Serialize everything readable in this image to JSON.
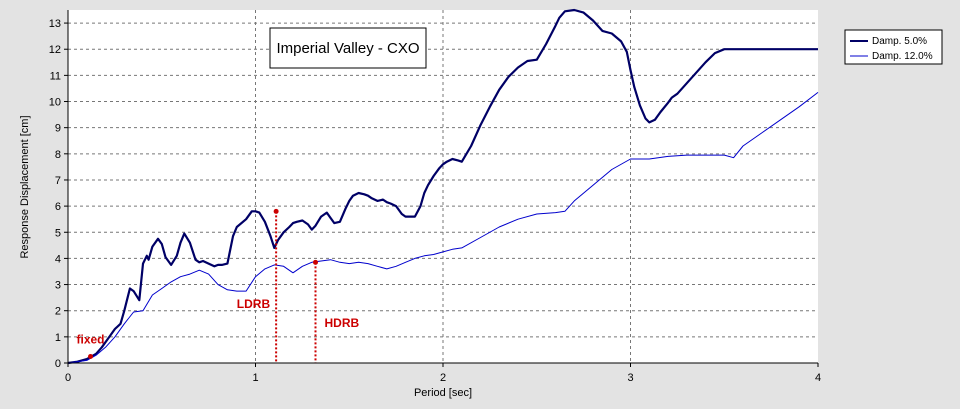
{
  "chart_data": {
    "type": "line",
    "title": "Imperial Valley - CXO",
    "xlabel": "Period [sec]",
    "ylabel": "Response Displacement [cm]",
    "xlim": [
      0,
      4
    ],
    "ylim": [
      0,
      13.5
    ],
    "xticks": [
      0,
      1,
      2,
      3,
      4
    ],
    "yticks": [
      0,
      1,
      2,
      3,
      4,
      5,
      6,
      7,
      8,
      9,
      10,
      11,
      12,
      13
    ],
    "grid": true,
    "legend_position": "top-right, outside plot",
    "series": [
      {
        "name": "Damp. 5.0%",
        "color": "#000066",
        "x": [
          0.0,
          0.05,
          0.1,
          0.15,
          0.18,
          0.22,
          0.25,
          0.28,
          0.3,
          0.33,
          0.35,
          0.38,
          0.4,
          0.42,
          0.43,
          0.45,
          0.48,
          0.5,
          0.52,
          0.55,
          0.58,
          0.6,
          0.62,
          0.65,
          0.68,
          0.7,
          0.72,
          0.75,
          0.78,
          0.8,
          0.82,
          0.85,
          0.88,
          0.9,
          0.95,
          0.98,
          1.0,
          1.02,
          1.05,
          1.08,
          1.1,
          1.12,
          1.15,
          1.18,
          1.2,
          1.22,
          1.25,
          1.28,
          1.3,
          1.32,
          1.35,
          1.38,
          1.4,
          1.42,
          1.45,
          1.48,
          1.5,
          1.52,
          1.55,
          1.58,
          1.6,
          1.62,
          1.65,
          1.68,
          1.7,
          1.72,
          1.75,
          1.78,
          1.8,
          1.82,
          1.85,
          1.88,
          1.9,
          1.92,
          1.95,
          1.98,
          2.0,
          2.02,
          2.05,
          2.08,
          2.1,
          2.15,
          2.2,
          2.25,
          2.3,
          2.35,
          2.4,
          2.45,
          2.5,
          2.55,
          2.6,
          2.62,
          2.65,
          2.7,
          2.75,
          2.8,
          2.85,
          2.9,
          2.95,
          2.98,
          3.0,
          3.02,
          3.05,
          3.08,
          3.1,
          3.13,
          3.16,
          3.2,
          3.22,
          3.25,
          3.3,
          3.35,
          3.4,
          3.45,
          3.5,
          3.55,
          3.58,
          3.6,
          3.62,
          3.65,
          3.7,
          3.75,
          3.8,
          3.85,
          3.9,
          3.95,
          4.0
        ],
        "y": [
          0.0,
          0.05,
          0.15,
          0.35,
          0.6,
          1.0,
          1.3,
          1.5,
          2.0,
          2.85,
          2.75,
          2.4,
          3.8,
          4.1,
          3.95,
          4.45,
          4.75,
          4.55,
          4.05,
          3.75,
          4.1,
          4.6,
          4.95,
          4.6,
          3.95,
          3.85,
          3.9,
          3.8,
          3.7,
          3.75,
          3.75,
          3.8,
          4.85,
          5.2,
          5.5,
          5.8,
          5.8,
          5.75,
          5.4,
          4.85,
          4.4,
          4.7,
          5.0,
          5.2,
          5.35,
          5.4,
          5.45,
          5.3,
          5.1,
          5.25,
          5.6,
          5.75,
          5.55,
          5.35,
          5.4,
          5.9,
          6.2,
          6.4,
          6.5,
          6.45,
          6.4,
          6.3,
          6.2,
          6.25,
          6.15,
          6.1,
          6.0,
          5.7,
          5.6,
          5.6,
          5.6,
          6.0,
          6.5,
          6.8,
          7.15,
          7.45,
          7.6,
          7.7,
          7.8,
          7.75,
          7.7,
          8.3,
          9.1,
          9.8,
          10.45,
          10.95,
          11.3,
          11.55,
          11.6,
          12.2,
          12.9,
          13.2,
          13.45,
          13.5,
          13.4,
          13.1,
          12.7,
          12.6,
          12.3,
          11.9,
          11.2,
          10.55,
          9.85,
          9.35,
          9.2,
          9.3,
          9.6,
          9.95,
          10.15,
          10.3,
          10.7,
          11.1,
          11.5,
          11.85,
          12.0,
          12.0,
          12.0,
          12.0,
          12.0,
          12.0,
          12.0,
          12.0,
          12.0,
          12.0,
          12.0,
          12.0,
          12.0
        ]
      },
      {
        "name": "Damp. 12.0%",
        "color": "#0000cc",
        "x": [
          0.0,
          0.1,
          0.15,
          0.2,
          0.25,
          0.3,
          0.35,
          0.4,
          0.45,
          0.5,
          0.55,
          0.6,
          0.65,
          0.7,
          0.75,
          0.8,
          0.85,
          0.9,
          0.95,
          1.0,
          1.05,
          1.1,
          1.15,
          1.2,
          1.25,
          1.3,
          1.35,
          1.4,
          1.45,
          1.5,
          1.55,
          1.6,
          1.65,
          1.7,
          1.75,
          1.8,
          1.85,
          1.9,
          1.95,
          2.0,
          2.05,
          2.1,
          2.2,
          2.3,
          2.4,
          2.5,
          2.6,
          2.65,
          2.7,
          2.8,
          2.9,
          3.0,
          3.1,
          3.2,
          3.3,
          3.4,
          3.5,
          3.55,
          3.6,
          3.7,
          3.8,
          3.9,
          4.0
        ],
        "y": [
          0.0,
          0.1,
          0.3,
          0.6,
          1.0,
          1.5,
          1.95,
          2.0,
          2.6,
          2.85,
          3.1,
          3.3,
          3.4,
          3.55,
          3.4,
          3.0,
          2.8,
          2.75,
          2.75,
          3.3,
          3.6,
          3.75,
          3.7,
          3.45,
          3.7,
          3.85,
          3.9,
          3.95,
          3.85,
          3.8,
          3.85,
          3.8,
          3.7,
          3.6,
          3.7,
          3.85,
          4.0,
          4.1,
          4.15,
          4.25,
          4.35,
          4.4,
          4.8,
          5.2,
          5.5,
          5.7,
          5.75,
          5.8,
          6.2,
          6.8,
          7.4,
          7.8,
          7.8,
          7.9,
          7.95,
          7.95,
          7.95,
          7.85,
          8.3,
          8.8,
          9.3,
          9.8,
          10.35
        ]
      }
    ],
    "annotations": [
      {
        "label": "fixed",
        "x": 0.12,
        "y": 0.25,
        "color": "#cc0000"
      },
      {
        "label": "LDRB",
        "x": 1.11,
        "y": 5.8,
        "color": "#cc0000"
      },
      {
        "label": "HDRB",
        "x": 1.32,
        "y": 3.85,
        "color": "#cc0000"
      }
    ]
  }
}
